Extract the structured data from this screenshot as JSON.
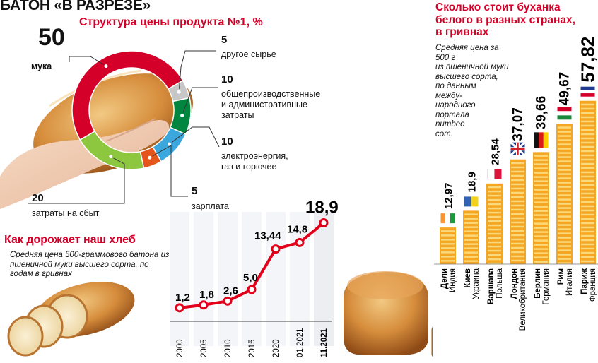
{
  "header": {
    "main_title": "БАТОН «В РАЗРЕЗЕ»"
  },
  "chart_data": [
    {
      "type": "pie",
      "title": "Структура цены продукта №1, %",
      "slices": [
        {
          "value": "50",
          "label": "мука",
          "color": "#d4002a"
        },
        {
          "value": "5",
          "label": "другое сырье",
          "color": "#c7c7c7"
        },
        {
          "value": "10",
          "label": "общепроизводственные и административные затраты",
          "label_lines": [
            "общепроизводственные",
            "и административные",
            "затраты"
          ],
          "color": "#00863f"
        },
        {
          "value": "10",
          "label": "электроэнергия, газ и горючее",
          "label_lines": [
            "электроэнергия,",
            "газ и горючее"
          ],
          "color": "#3ba7dd"
        },
        {
          "value": "5",
          "label": "зарплата",
          "color": "#e5541b"
        },
        {
          "value": "20",
          "label": "затраты на сбыт",
          "color": "#8dc63f"
        }
      ]
    },
    {
      "type": "line",
      "title": "Как дорожает наш хлеб",
      "subtitle": "Средняя цена 500-граммового батона из пшеничной муки высшего сорта, по годам в гривнах",
      "categories": [
        "2000",
        "2005",
        "2010",
        "2015",
        "2020",
        "01.2021",
        "11.2021"
      ],
      "values": [
        1.2,
        1.8,
        2.6,
        5.0,
        13.44,
        14.8,
        18.9
      ],
      "value_labels": [
        "1,2",
        "1,8",
        "2,6",
        "5,0",
        "13,44",
        "14,8",
        "18,9"
      ],
      "ylim": [
        0,
        20
      ],
      "color": "#e2001a"
    },
    {
      "type": "bar",
      "title": "Сколько стоит буханка белого в разных странах, в гривнах",
      "subtitle": "Средняя цена за 500 г из пшеничной муки высшего сорта, по данным международного портала numbeo com.",
      "subtitle_lines": [
        "Средняя цена за 500 г",
        "из пшеничной муки",
        "высшего сорта,",
        "по данным",
        "между-",
        "народного",
        "портала",
        "numbeo",
        "com."
      ],
      "cities": [
        "Дели",
        "Киев",
        "Варшава",
        "Лондон",
        "Берлин",
        "Рим",
        "Париж"
      ],
      "countries": [
        "Индия",
        "Украина",
        "Польша",
        "Великобритания",
        "Германия",
        "Италия",
        "Франция"
      ],
      "values": [
        12.97,
        18.9,
        28.54,
        37.07,
        39.66,
        49.67,
        57.82
      ],
      "value_labels": [
        "12,97",
        "18,9",
        "28,54",
        "37,07",
        "39,66",
        "49,67",
        "57,82"
      ],
      "flags": [
        "india-flag",
        "ukraine-flag",
        "poland-flag",
        "uk-flag",
        "germany-flag",
        "italy-flag",
        "france-flag"
      ],
      "bar_color": "#f5a623",
      "stripe_color": "#fbd97a"
    }
  ]
}
